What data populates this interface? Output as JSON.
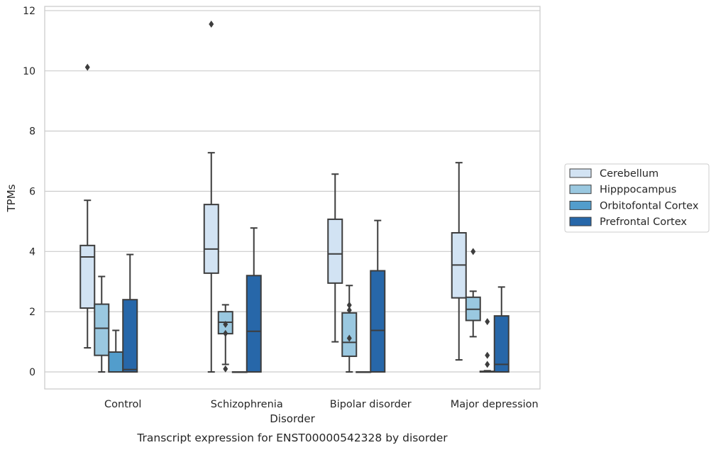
{
  "chart_data": {
    "type": "boxplot",
    "xlabel": "Disorder",
    "ylabel": "TPMs",
    "caption": "Transcript expression for ENST00000542328 by disorder",
    "categories": [
      "Control",
      "Schizophrenia",
      "Bipolar disorder",
      "Major depression"
    ],
    "ylim": [
      -0.55,
      12.2
    ],
    "yticks": [
      0,
      2,
      4,
      6,
      8,
      10,
      12
    ],
    "grid": true,
    "legend_position": "right",
    "series": [
      {
        "name": "Cerebellum",
        "color": "#d2e3f3",
        "boxes": [
          {
            "whislo": 0.8,
            "q1": 2.12,
            "med": 3.82,
            "q3": 4.2,
            "whishi": 5.7,
            "fliers": [
              10.12
            ]
          },
          {
            "whislo": 0.0,
            "q1": 3.28,
            "med": 4.08,
            "q3": 5.56,
            "whishi": 7.28,
            "fliers": [
              11.55
            ]
          },
          {
            "whislo": 1.0,
            "q1": 2.95,
            "med": 3.92,
            "q3": 5.07,
            "whishi": 6.57,
            "fliers": []
          },
          {
            "whislo": 0.4,
            "q1": 2.46,
            "med": 3.55,
            "q3": 4.62,
            "whishi": 6.95,
            "fliers": []
          }
        ]
      },
      {
        "name": "Hipppocampus",
        "color": "#9ac8e0",
        "boxes": [
          {
            "whislo": 0.0,
            "q1": 0.55,
            "med": 1.45,
            "q3": 2.25,
            "whishi": 3.17,
            "fliers": []
          },
          {
            "whislo": 0.25,
            "q1": 1.27,
            "med": 1.65,
            "q3": 2.0,
            "whishi": 2.23,
            "fliers": [
              0.1,
              1.28,
              1.58
            ]
          },
          {
            "whislo": 0.0,
            "q1": 0.52,
            "med": 0.98,
            "q3": 1.96,
            "whishi": 2.87,
            "fliers": [
              1.12,
              2.05,
              2.22
            ]
          },
          {
            "whislo": 1.17,
            "q1": 1.71,
            "med": 2.08,
            "q3": 2.48,
            "whishi": 2.68,
            "fliers": [
              4.0
            ]
          }
        ]
      },
      {
        "name": "Orbitofontal Cortex",
        "color": "#529dcc",
        "boxes": [
          {
            "whislo": 0.0,
            "q1": 0.0,
            "med": 0.0,
            "q3": 0.66,
            "whishi": 1.38,
            "fliers": []
          },
          {
            "whislo": 0.0,
            "q1": 0.0,
            "med": 0.0,
            "q3": 0.0,
            "whishi": 0.0,
            "fliers": []
          },
          {
            "whislo": 0.0,
            "q1": 0.0,
            "med": 0.0,
            "q3": 0.0,
            "whishi": 0.0,
            "fliers": []
          },
          {
            "whislo": 0.0,
            "q1": 0.0,
            "med": 0.0,
            "q3": 0.02,
            "whishi": 0.04,
            "fliers": [
              0.25,
              0.55,
              1.67
            ]
          }
        ]
      },
      {
        "name": "Prefrontal Cortex",
        "color": "#2767a9",
        "boxes": [
          {
            "whislo": 0.0,
            "q1": 0.0,
            "med": 0.08,
            "q3": 2.4,
            "whishi": 3.9,
            "fliers": []
          },
          {
            "whislo": 0.0,
            "q1": 0.0,
            "med": 1.35,
            "q3": 3.2,
            "whishi": 4.78,
            "fliers": []
          },
          {
            "whislo": 0.0,
            "q1": 0.0,
            "med": 1.38,
            "q3": 3.36,
            "whishi": 5.03,
            "fliers": []
          },
          {
            "whislo": 0.0,
            "q1": 0.0,
            "med": 0.25,
            "q3": 1.86,
            "whishi": 2.82,
            "fliers": []
          }
        ]
      }
    ]
  }
}
